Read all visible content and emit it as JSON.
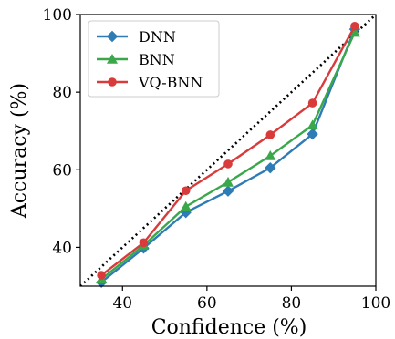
{
  "chart_data": {
    "type": "line",
    "xlabel": "Confidence (%)",
    "ylabel": "Accuracy (%)",
    "xlim": [
      30,
      100
    ],
    "ylim": [
      30,
      100
    ],
    "xticks": [
      40,
      60,
      80,
      100
    ],
    "yticks": [
      40,
      60,
      80,
      100
    ],
    "grid": false,
    "legend_position": "top-left",
    "reference_line": {
      "style": "dotted",
      "color": "#000000",
      "from": [
        30,
        30
      ],
      "to": [
        100,
        100
      ]
    },
    "x": [
      35,
      45,
      55,
      65,
      75,
      85,
      95
    ],
    "series": [
      {
        "name": "DNN",
        "color": "#2e7bb6",
        "marker": "diamond",
        "values": [
          31.0,
          39.8,
          49.0,
          54.5,
          60.5,
          69.2,
          96.2
        ]
      },
      {
        "name": "BNN",
        "color": "#3aa84a",
        "marker": "triangle",
        "values": [
          31.8,
          40.5,
          50.5,
          56.8,
          63.6,
          71.5,
          95.4
        ]
      },
      {
        "name": "VQ-BNN",
        "color": "#d93b3b",
        "marker": "circle",
        "values": [
          32.8,
          41.2,
          54.6,
          61.5,
          69.0,
          77.2,
          97.0
        ]
      }
    ]
  }
}
